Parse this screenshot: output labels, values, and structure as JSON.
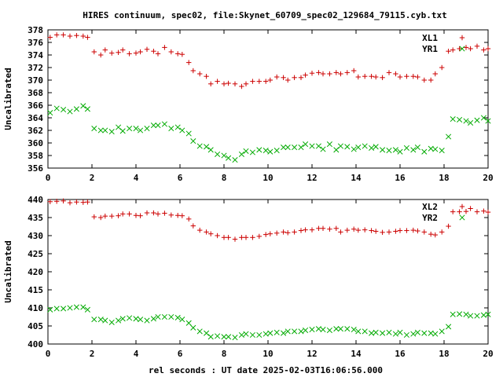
{
  "title": "HIRES continuum, spec02, file:Skynet_60709_spec02_129684_79115.cyb.txt",
  "xlabel": "rel seconds : UT date 2025-02-03T16:06:56.000",
  "colors": {
    "plus": "#cc0000",
    "cross": "#00aa00",
    "axis": "#000000"
  },
  "chart_data": [
    {
      "type": "scatter",
      "ylabel": "Uncalibrated",
      "xlim": [
        0,
        20
      ],
      "ylim": [
        356,
        378
      ],
      "xticks": [
        0,
        2,
        4,
        6,
        8,
        10,
        12,
        14,
        16,
        18,
        20
      ],
      "yticks": [
        356,
        358,
        360,
        362,
        364,
        366,
        368,
        370,
        372,
        374,
        376,
        378
      ],
      "grid": false,
      "legend_position": "top-right",
      "series": [
        {
          "name": "XL1",
          "marker": "plus",
          "x": [
            0.1,
            0.4,
            0.7,
            1.0,
            1.3,
            1.6,
            1.8,
            2.1,
            2.4,
            2.6,
            2.9,
            3.2,
            3.4,
            3.7,
            4.0,
            4.2,
            4.5,
            4.8,
            5.0,
            5.3,
            5.6,
            5.9,
            6.1,
            6.4,
            6.6,
            6.9,
            7.2,
            7.4,
            7.7,
            8.0,
            8.2,
            8.5,
            8.8,
            9.0,
            9.3,
            9.6,
            9.9,
            10.1,
            10.4,
            10.7,
            10.9,
            11.2,
            11.5,
            11.7,
            12.0,
            12.3,
            12.5,
            12.8,
            13.1,
            13.3,
            13.6,
            13.9,
            14.1,
            14.4,
            14.7,
            14.9,
            15.2,
            15.5,
            15.8,
            16.0,
            16.3,
            16.6,
            16.8,
            17.1,
            17.4,
            17.6,
            17.9,
            18.2,
            18.4,
            18.7,
            19.0,
            19.2,
            19.5,
            19.8,
            20.0
          ],
          "y": [
            376.8,
            377.2,
            377.2,
            377.0,
            377.1,
            377.0,
            376.8,
            374.5,
            374.0,
            374.8,
            374.3,
            374.4,
            374.8,
            374.2,
            374.3,
            374.5,
            374.9,
            374.6,
            374.2,
            375.2,
            374.5,
            374.2,
            374.1,
            372.8,
            371.5,
            371.0,
            370.6,
            369.4,
            369.8,
            369.4,
            369.5,
            369.4,
            369.0,
            369.4,
            369.8,
            369.8,
            369.8,
            370.0,
            370.5,
            370.4,
            370.0,
            370.4,
            370.4,
            370.8,
            371.1,
            371.2,
            371.0,
            371.0,
            371.2,
            371.0,
            371.2,
            371.5,
            370.5,
            370.6,
            370.6,
            370.5,
            370.4,
            371.2,
            371.0,
            370.5,
            370.6,
            370.6,
            370.5,
            370.0,
            370.0,
            371.0,
            372.0,
            374.6,
            374.8,
            375.0,
            375.2,
            375.0,
            375.4,
            374.8,
            375.0
          ]
        },
        {
          "name": "YR1",
          "marker": "cross",
          "x": [
            0.1,
            0.4,
            0.7,
            1.0,
            1.3,
            1.6,
            1.8,
            2.1,
            2.4,
            2.6,
            2.9,
            3.2,
            3.4,
            3.7,
            4.0,
            4.2,
            4.5,
            4.8,
            5.0,
            5.3,
            5.6,
            5.9,
            6.1,
            6.4,
            6.6,
            6.9,
            7.2,
            7.4,
            7.7,
            8.0,
            8.2,
            8.5,
            8.8,
            9.0,
            9.3,
            9.6,
            9.9,
            10.1,
            10.4,
            10.7,
            10.9,
            11.2,
            11.5,
            11.7,
            12.0,
            12.3,
            12.5,
            12.8,
            13.1,
            13.3,
            13.6,
            13.9,
            14.1,
            14.4,
            14.7,
            14.9,
            15.2,
            15.5,
            15.8,
            16.0,
            16.3,
            16.6,
            16.8,
            17.1,
            17.4,
            17.6,
            17.9,
            18.2,
            18.4,
            18.7,
            19.0,
            19.2,
            19.5,
            19.8,
            20.0
          ],
          "y": [
            364.8,
            365.5,
            365.3,
            365.0,
            365.4,
            365.9,
            365.4,
            362.3,
            362.0,
            362.0,
            361.8,
            362.5,
            361.9,
            362.3,
            362.3,
            362.0,
            362.3,
            362.8,
            362.8,
            363.0,
            362.3,
            362.5,
            362.0,
            361.5,
            360.3,
            359.5,
            359.4,
            358.9,
            358.2,
            358.0,
            357.6,
            357.3,
            358.2,
            358.7,
            358.5,
            358.9,
            358.8,
            358.6,
            358.8,
            359.3,
            359.3,
            359.3,
            359.3,
            359.8,
            359.5,
            359.5,
            359.0,
            359.8,
            358.9,
            359.5,
            359.4,
            359.0,
            359.3,
            359.5,
            359.2,
            359.4,
            358.9,
            358.8,
            358.9,
            358.6,
            359.2,
            358.9,
            359.3,
            358.6,
            359.1,
            359.0,
            358.8,
            361.0,
            363.8,
            363.7,
            363.5,
            363.2,
            363.6,
            364.0,
            363.5
          ]
        }
      ]
    },
    {
      "type": "scatter",
      "ylabel": "Uncalibrated",
      "xlim": [
        0,
        20
      ],
      "ylim": [
        400,
        440
      ],
      "xticks": [
        0,
        2,
        4,
        6,
        8,
        10,
        12,
        14,
        16,
        18,
        20
      ],
      "yticks": [
        400,
        405,
        410,
        415,
        420,
        425,
        430,
        435,
        440
      ],
      "grid": false,
      "legend_position": "top-right",
      "series": [
        {
          "name": "XL2",
          "marker": "plus",
          "x": [
            0.1,
            0.4,
            0.7,
            1.0,
            1.3,
            1.6,
            1.8,
            2.1,
            2.4,
            2.6,
            2.9,
            3.2,
            3.4,
            3.7,
            4.0,
            4.2,
            4.5,
            4.8,
            5.0,
            5.3,
            5.6,
            5.9,
            6.1,
            6.4,
            6.6,
            6.9,
            7.2,
            7.4,
            7.7,
            8.0,
            8.2,
            8.5,
            8.8,
            9.0,
            9.3,
            9.6,
            9.9,
            10.1,
            10.4,
            10.7,
            10.9,
            11.2,
            11.5,
            11.7,
            12.0,
            12.3,
            12.5,
            12.8,
            13.1,
            13.3,
            13.6,
            13.9,
            14.1,
            14.4,
            14.7,
            14.9,
            15.2,
            15.5,
            15.8,
            16.0,
            16.3,
            16.6,
            16.8,
            17.1,
            17.4,
            17.6,
            17.9,
            18.2,
            18.4,
            18.7,
            19.0,
            19.2,
            19.5,
            19.8,
            20.0
          ],
          "y": [
            439.4,
            439.5,
            439.6,
            439.1,
            439.3,
            439.2,
            439.3,
            435.2,
            435.0,
            435.4,
            435.4,
            435.5,
            436.0,
            436.0,
            435.6,
            435.5,
            436.3,
            436.3,
            436.0,
            436.2,
            435.7,
            435.6,
            435.5,
            434.6,
            432.7,
            431.5,
            431.0,
            430.5,
            430.0,
            429.5,
            429.5,
            429.0,
            429.5,
            429.5,
            429.5,
            429.8,
            430.3,
            430.5,
            430.7,
            431.0,
            430.8,
            431.0,
            431.4,
            431.6,
            431.6,
            432.0,
            432.0,
            431.8,
            432.0,
            431.0,
            431.5,
            431.8,
            431.5,
            431.6,
            431.4,
            431.2,
            430.9,
            431.0,
            431.2,
            431.4,
            431.4,
            431.5,
            431.3,
            431.0,
            430.4,
            430.2,
            431.0,
            432.6,
            436.6,
            436.6,
            436.7,
            437.5,
            436.6,
            436.8,
            436.5
          ]
        },
        {
          "name": "YR2",
          "marker": "cross",
          "x": [
            0.1,
            0.4,
            0.7,
            1.0,
            1.3,
            1.6,
            1.8,
            2.1,
            2.4,
            2.6,
            2.9,
            3.2,
            3.4,
            3.7,
            4.0,
            4.2,
            4.5,
            4.8,
            5.0,
            5.3,
            5.6,
            5.9,
            6.1,
            6.4,
            6.6,
            6.9,
            7.2,
            7.4,
            7.7,
            8.0,
            8.2,
            8.5,
            8.8,
            9.0,
            9.3,
            9.6,
            9.9,
            10.1,
            10.4,
            10.7,
            10.9,
            11.2,
            11.5,
            11.7,
            12.0,
            12.3,
            12.5,
            12.8,
            13.1,
            13.3,
            13.6,
            13.9,
            14.1,
            14.4,
            14.7,
            14.9,
            15.2,
            15.5,
            15.8,
            16.0,
            16.3,
            16.6,
            16.8,
            17.1,
            17.4,
            17.6,
            17.9,
            18.2,
            18.4,
            18.7,
            19.0,
            19.2,
            19.5,
            19.8,
            20.0
          ],
          "y": [
            409.5,
            409.8,
            409.8,
            410.0,
            410.2,
            410.2,
            409.5,
            406.8,
            406.8,
            406.5,
            406.0,
            406.5,
            407.0,
            407.2,
            407.0,
            406.8,
            406.5,
            407.0,
            407.5,
            407.5,
            407.5,
            407.3,
            406.8,
            405.8,
            404.5,
            403.5,
            403.0,
            402.0,
            402.2,
            402.0,
            402.0,
            401.8,
            402.5,
            402.8,
            402.5,
            402.5,
            402.8,
            403.0,
            403.2,
            403.0,
            403.5,
            403.5,
            403.5,
            403.8,
            404.0,
            404.2,
            404.0,
            403.8,
            404.2,
            404.2,
            404.2,
            404.0,
            403.5,
            403.5,
            403.0,
            403.2,
            403.0,
            403.2,
            402.8,
            403.2,
            402.5,
            402.8,
            403.2,
            403.0,
            403.0,
            402.8,
            403.5,
            404.8,
            408.2,
            408.3,
            408.2,
            407.8,
            407.8,
            408.0,
            408.2
          ]
        }
      ]
    }
  ]
}
